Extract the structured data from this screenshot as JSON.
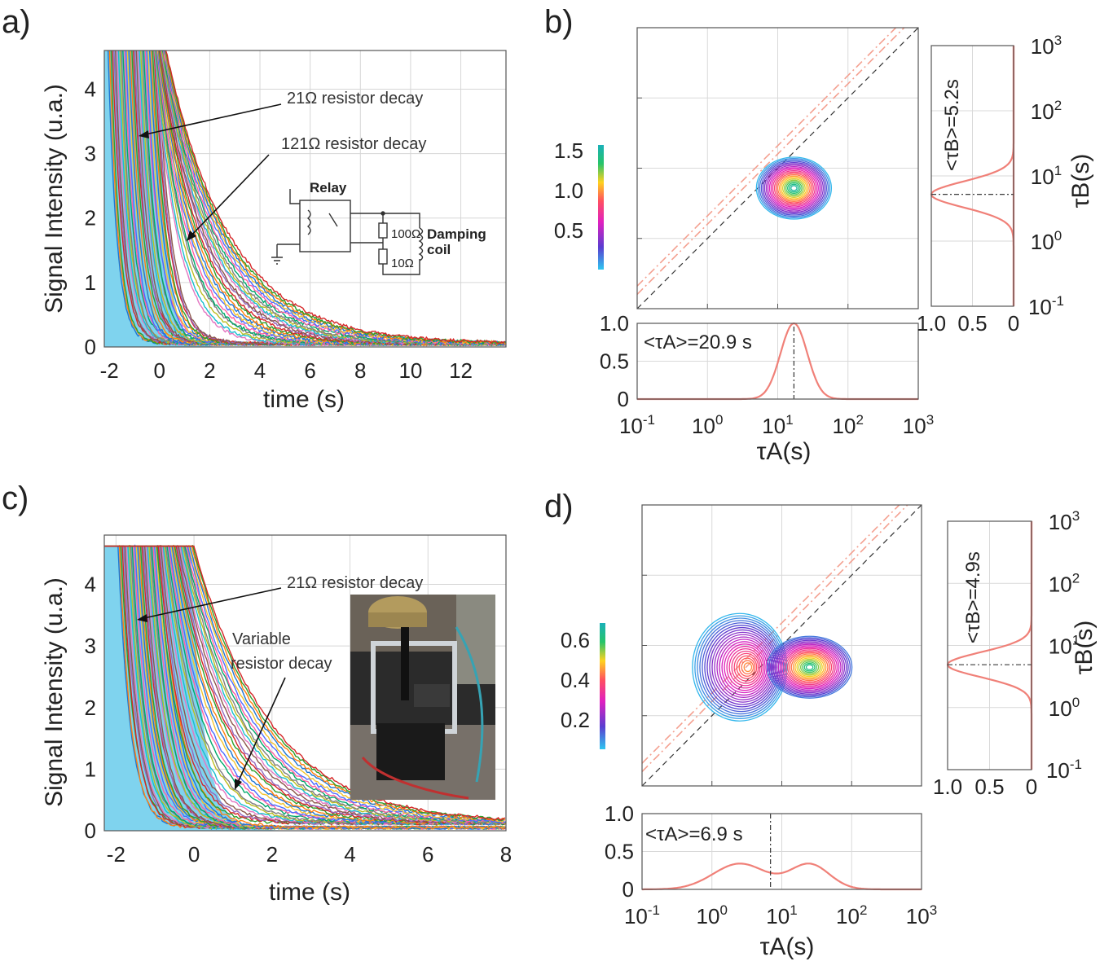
{
  "panels": {
    "a": {
      "label": "a)"
    },
    "b": {
      "label": "b)"
    },
    "c": {
      "label": "c)"
    },
    "d": {
      "label": "d)"
    }
  },
  "chart_data": [
    {
      "panel": "a",
      "type": "line",
      "xlabel": "time (s)",
      "ylabel": "Signal Intensity (u.a.)",
      "xlim": [
        -2.2,
        13.8
      ],
      "ylim": [
        0,
        4.6
      ],
      "xticks": [
        -2,
        0,
        2,
        4,
        6,
        8,
        10,
        12
      ],
      "yticks": [
        0,
        1,
        2,
        3,
        4
      ],
      "grid": true,
      "fill_color": "#7fd3ee",
      "description_series": "many overlaid exponential decay curves, fast group (21 ohm) and slow group (121 ohm)",
      "decay_groups": [
        {
          "name": "21Ω resistor decay",
          "tau_range_s": [
            0.3,
            0.6
          ],
          "start_range_s": [
            -2.0,
            -0.1
          ]
        },
        {
          "name": "121Ω resistor decay",
          "tau_range_s": [
            1.2,
            2.6
          ],
          "start_range_s": [
            -0.3,
            0.3
          ]
        }
      ],
      "annotations": [
        "21Ω resistor decay",
        "121Ω resistor decay"
      ],
      "inset_circuit": {
        "title": "Relay",
        "r1": "100Ω",
        "r2": "10Ω",
        "coil_line1": "Damping",
        "coil_line2": "coil"
      }
    },
    {
      "panel": "b",
      "type": "heatmap",
      "xscale": "log",
      "yscale": "log",
      "xlim": [
        0.1,
        1000
      ],
      "ylim": [
        0.1,
        1000
      ],
      "xlabel": "τA(s)",
      "ylabel": "τB(s)",
      "peak": {
        "tauA": 17,
        "tauB": 5.2,
        "value": 1.5
      },
      "colorbar": {
        "ticks": [
          "1.5",
          "1.0",
          "0.5"
        ],
        "range": [
          0,
          1.6
        ]
      },
      "marginal_A": {
        "mean_text": "<τA>=20.9 s",
        "ylim": [
          0,
          1.0
        ],
        "yticks": [
          "1.0",
          "0.5",
          "0"
        ],
        "peak_x": 17,
        "log_sigma": 0.19
      },
      "marginal_B": {
        "mean_text": "<τB>=5.2s",
        "xticks": [
          "1.0",
          "0.5",
          "0"
        ],
        "peak_y": 5.2,
        "log_sigma": 0.2
      },
      "xtick_labels": [
        "10-1",
        "100",
        "101",
        "102",
        "103"
      ]
    },
    {
      "panel": "c",
      "type": "line",
      "xlabel": "time (s)",
      "ylabel": "Signal Intensity (u.a.)",
      "xlim": [
        -2.3,
        8.0
      ],
      "ylim": [
        0,
        4.8
      ],
      "xticks": [
        -2,
        0,
        2,
        4,
        6,
        8
      ],
      "yticks": [
        0,
        1,
        2,
        3,
        4
      ],
      "grid": true,
      "fill_color": "#7fd3ee",
      "annotations": [
        "21Ω resistor decay",
        "Variable resistor decay"
      ],
      "annotation_lines": [
        "Variable",
        "resistor decay"
      ]
    },
    {
      "panel": "d",
      "type": "heatmap",
      "xscale": "log",
      "yscale": "log",
      "xlim": [
        0.1,
        1000
      ],
      "ylim": [
        0.1,
        1000
      ],
      "xlabel": "τA(s)",
      "ylabel": "τB(s)",
      "peaks": [
        {
          "tauA": 2.5,
          "tauB": 4.9,
          "value": 0.45
        },
        {
          "tauA": 25,
          "tauB": 4.9,
          "value": 0.66
        }
      ],
      "colorbar": {
        "ticks": [
          "0.6",
          "0.4",
          "0.2"
        ],
        "range": [
          0,
          0.7
        ]
      },
      "marginal_A": {
        "mean_text": "<τA>=6.9 s",
        "ylim": [
          0,
          1.0
        ],
        "yticks": [
          "1.0",
          "0.5",
          "0"
        ],
        "mean_x": 6.9
      },
      "marginal_B": {
        "mean_text": "<τB>=4.9s",
        "xticks": [
          "1.0",
          "0.5",
          "0"
        ],
        "peak_y": 4.9
      },
      "xtick_labels": [
        "10-1",
        "100",
        "101",
        "102",
        "103"
      ]
    }
  ]
}
